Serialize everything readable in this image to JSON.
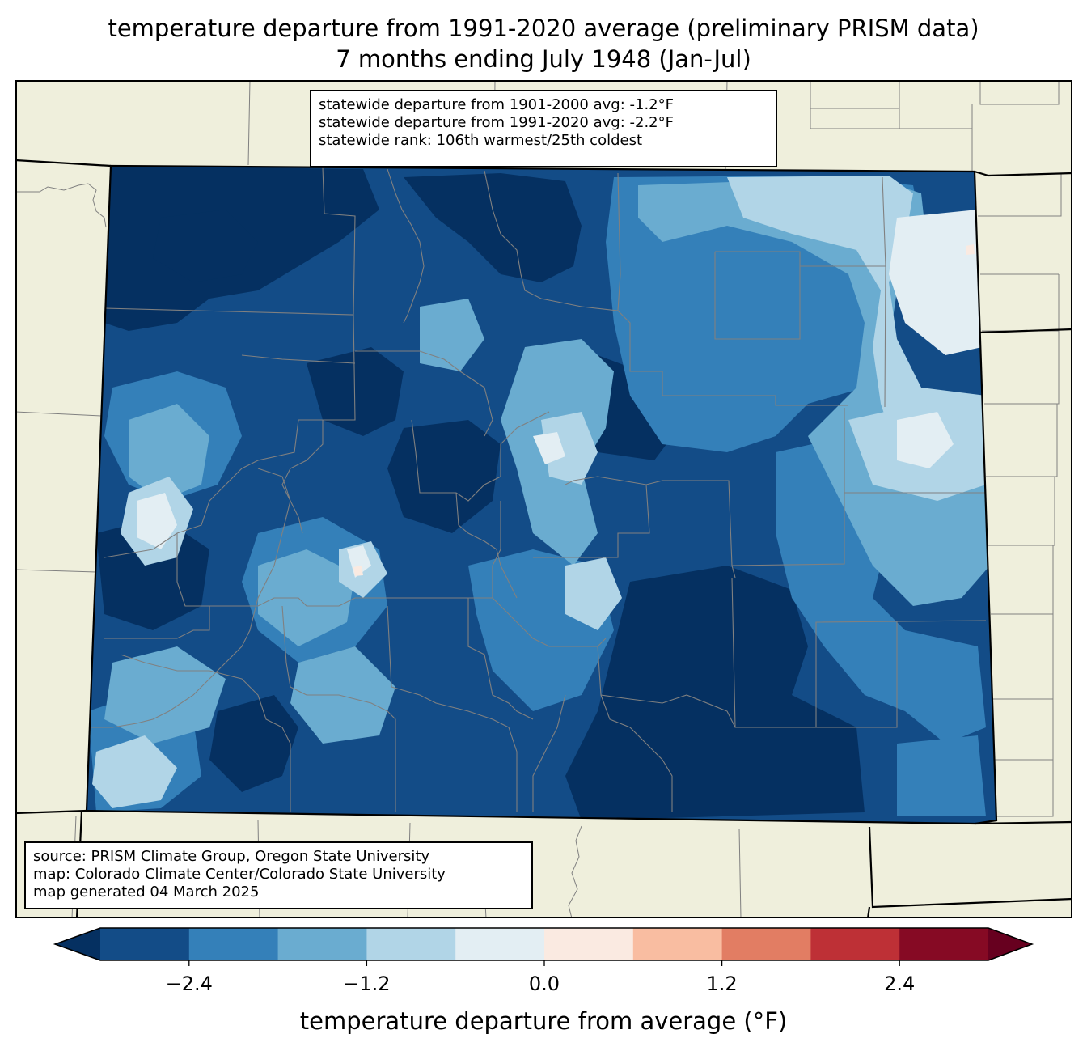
{
  "title_line1": "temperature departure from 1991-2020 average (preliminary PRISM data)",
  "title_line2": "7 months ending July 1948 (Jan-Jul)",
  "stats": [
    "statewide departure from 1901-2000 avg: -1.2°F",
    "statewide departure from 1991-2020 avg: -2.2°F",
    "statewide rank: 106th warmest/25th coldest"
  ],
  "source": [
    "source: PRISM Climate Group, Oregon State University",
    "map: Colorado Climate Center/Colorado State University",
    "map generated 04 March 2025"
  ],
  "colorbar": {
    "label": "temperature departure from average (°F)",
    "min": -3.0,
    "max": 3.0,
    "step": 0.6,
    "colors": [
      "#053061",
      "#134c87",
      "#3480b9",
      "#6aacd0",
      "#b1d5e7",
      "#e3eef3",
      "#faeae1",
      "#f9bda1",
      "#e27d63",
      "#be3036",
      "#860a24",
      "#67001f"
    ],
    "ticks": [
      -2.4,
      -1.2,
      0.0,
      1.2,
      2.4
    ],
    "tick_labels": [
      "−2.4",
      "−1.2",
      "0.0",
      "1.2",
      "2.4"
    ]
  },
  "map_colors": {
    "land": "#efefdc",
    "state_border": "#000000",
    "county_border": "#808080"
  }
}
